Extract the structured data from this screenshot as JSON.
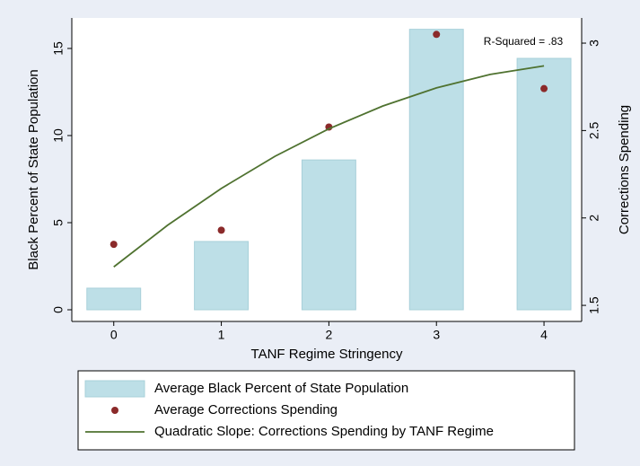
{
  "chart_data": {
    "type": "bar",
    "xlabel": "TANF Regime Stringency",
    "ylabel": "Black Percent of State Population",
    "y2label": "Corrections Spending",
    "annotation": "R-Squared = .83",
    "x": [
      0,
      1,
      2,
      3,
      4
    ],
    "xlim": [
      -0.39,
      4.35
    ],
    "xticks": [
      0,
      1,
      2,
      3,
      4
    ],
    "ylim": [
      -0.67,
      16.75
    ],
    "yticks": [
      0,
      5,
      10,
      15
    ],
    "y2lim": [
      1.408,
      3.144
    ],
    "y2ticks": [
      1.5,
      2,
      2.5,
      3
    ],
    "series": [
      {
        "name": "Average Black Percent of State Population",
        "type": "bar",
        "color": "#bddfe7",
        "values": [
          1.24,
          3.92,
          8.6,
          16.1,
          14.43
        ]
      },
      {
        "name": "Average Corrections Spending",
        "type": "scatter",
        "axis": "y2",
        "color": "#8b2a2a",
        "values": [
          1.849,
          1.93,
          2.52,
          3.05,
          2.74
        ]
      },
      {
        "name": "Quadratic Slope: Corrections Spending by TANF Regime",
        "type": "line",
        "axis": "y2",
        "color": "#4f7230",
        "x": [
          0,
          0.5,
          1,
          1.5,
          2,
          2.5,
          3,
          3.5,
          4
        ],
        "values": [
          1.72,
          1.958,
          2.169,
          2.353,
          2.51,
          2.64,
          2.744,
          2.821,
          2.87
        ]
      }
    ]
  }
}
